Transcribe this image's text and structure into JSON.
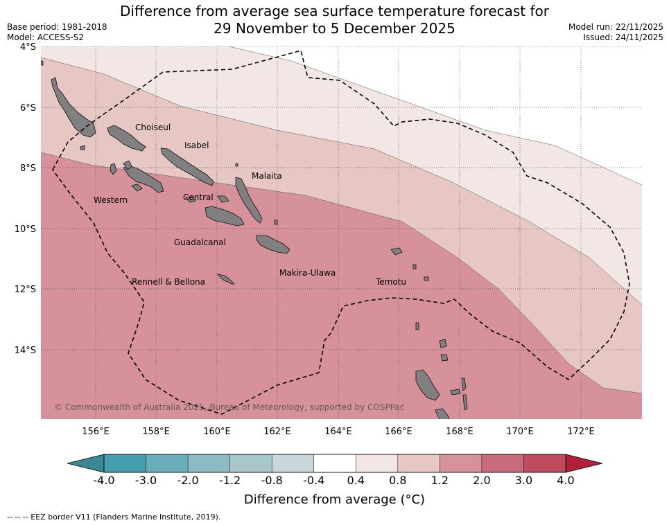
{
  "header": {
    "title_line1": "Difference from average sea surface temperature forecast for",
    "title_line2": "29 November to 5 December 2025",
    "base_period": "Base period: 1981-2018",
    "model": "Model: ACCESS-S2",
    "model_run": "Model run: 22/11/2025",
    "issued": "Issued: 24/11/2025"
  },
  "map": {
    "lat_labels": [
      "4°S",
      "6°S",
      "8°S",
      "10°S",
      "12°S",
      "14°S"
    ],
    "lon_labels": [
      "156°E",
      "158°E",
      "160°E",
      "162°E",
      "164°E",
      "166°E",
      "168°E",
      "170°E",
      "172°E"
    ],
    "provinces": [
      {
        "name": "Choiseul"
      },
      {
        "name": "Isabel"
      },
      {
        "name": "Malaita"
      },
      {
        "name": "Western"
      },
      {
        "name": "Central"
      },
      {
        "name": "Guadalcanal"
      },
      {
        "name": "Makira-Ulawa"
      },
      {
        "name": "Rennell & Bellona"
      },
      {
        "name": "Temotu"
      }
    ],
    "copyright": "© Commonwealth of Australia 2025, Bureau of Meteorology, supported by COSPPac",
    "band_colors": {
      "b04_08": "#f3e7e6",
      "b08_12": "#e6c7c3",
      "b12_20": "#d6919a"
    },
    "land_color": "#808080"
  },
  "colorbar": {
    "title": "Difference from average (°C)",
    "ticks": [
      "-4.0",
      "-3.0",
      "-2.0",
      "-1.2",
      "-0.8",
      "-0.4",
      "0.4",
      "0.8",
      "1.2",
      "2.0",
      "3.0",
      "4.0"
    ],
    "colors": [
      "#449ead",
      "#6aaebc",
      "#8bbcc6",
      "#a8c7cc",
      "#c9d7dc",
      "#ffffff",
      "#f3e7e6",
      "#e6c7c3",
      "#d6919a",
      "#c96b7a",
      "#bf4b5e"
    ],
    "under_color": "#3a8795",
    "over_color": "#b11f3a"
  },
  "footer": {
    "legend_note": "-- -- -- EEZ border V11 (Flanders Marine Institute, 2019)."
  }
}
